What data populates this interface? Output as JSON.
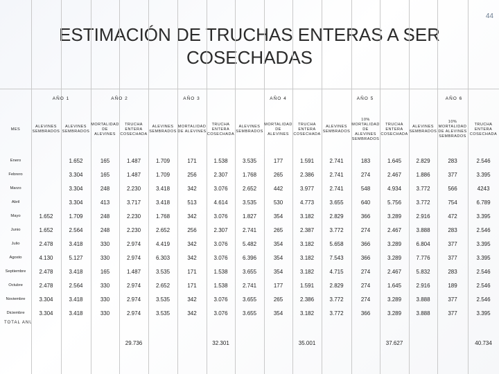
{
  "page_number": "44",
  "title": "ESTIMACIÓN DE TRUCHAS ENTERAS A SER COSECHADAS",
  "years": [
    "AÑO 1",
    "AÑO 2",
    "AÑO 3",
    "AÑO 4",
    "AÑO 5",
    "AÑO 6"
  ],
  "col_headers": {
    "mes": "MES",
    "alevines": "ALEVINES SEMBRADOS",
    "mortalidad": "MORTALIDAD DE ALEVINES",
    "mortalidad_pct": "10% MORTALIDAD DE ALEVINES SEMBRADOS",
    "trucha": "TRUCHA ENTERA COSECHADA"
  },
  "rows": [
    {
      "mes": "Enero",
      "c": [
        "",
        "1.652",
        "165",
        "1.487",
        "1.709",
        "171",
        "1.538",
        "3.535",
        "177",
        "1.591",
        "2.741",
        "183",
        "1.645",
        "2.829",
        "283",
        "2.546"
      ]
    },
    {
      "mes": "Febrero",
      "c": [
        "",
        "3.304",
        "165",
        "1.487",
        "1.709",
        "256",
        "2.307",
        "1.768",
        "265",
        "2.386",
        "2.741",
        "274",
        "2.467",
        "1.886",
        "377",
        "3.395"
      ]
    },
    {
      "mes": "Marzo",
      "c": [
        "",
        "3.304",
        "248",
        "2.230",
        "3.418",
        "342",
        "3.076",
        "2.652",
        "442",
        "3.977",
        "2.741",
        "548",
        "4.934",
        "3.772",
        "566",
        "4243"
      ]
    },
    {
      "mes": "Abril",
      "c": [
        "",
        "3.304",
        "413",
        "3.717",
        "3.418",
        "513",
        "4.614",
        "3.535",
        "530",
        "4.773",
        "3.655",
        "640",
        "5.756",
        "3.772",
        "754",
        "6.789"
      ]
    },
    {
      "mes": "Mayo",
      "c": [
        "1.652",
        "1.709",
        "248",
        "2.230",
        "1.768",
        "342",
        "3.076",
        "1.827",
        "354",
        "3.182",
        "2.829",
        "366",
        "3.289",
        "2.916",
        "472",
        "3.395"
      ]
    },
    {
      "mes": "Junio",
      "c": [
        "1.652",
        "2.564",
        "248",
        "2.230",
        "2.652",
        "256",
        "2.307",
        "2.741",
        "265",
        "2.387",
        "3.772",
        "274",
        "2.467",
        "3.888",
        "283",
        "2.546"
      ]
    },
    {
      "mes": "Julio",
      "c": [
        "2.478",
        "3.418",
        "330",
        "2.974",
        "4.419",
        "342",
        "3.076",
        "5.482",
        "354",
        "3.182",
        "5.658",
        "366",
        "3.289",
        "6.804",
        "377",
        "3.395"
      ]
    },
    {
      "mes": "Agosto",
      "c": [
        "4.130",
        "5.127",
        "330",
        "2.974",
        "6.303",
        "342",
        "3.076",
        "6.396",
        "354",
        "3.182",
        "7.543",
        "366",
        "3.289",
        "7.776",
        "377",
        "3.395"
      ]
    },
    {
      "mes": "Septiembre",
      "c": [
        "2.478",
        "3.418",
        "165",
        "1.487",
        "3.535",
        "171",
        "1.538",
        "3.655",
        "354",
        "3.182",
        "4.715",
        "274",
        "2.467",
        "5.832",
        "283",
        "2.546"
      ]
    },
    {
      "mes": "Octubre",
      "c": [
        "2.478",
        "2.564",
        "330",
        "2.974",
        "2.652",
        "171",
        "1.538",
        "2.741",
        "177",
        "1.591",
        "2.829",
        "274",
        "1.645",
        "2.916",
        "189",
        "2.546"
      ]
    },
    {
      "mes": "Noviembre",
      "c": [
        "3.304",
        "3.418",
        "330",
        "2.974",
        "3.535",
        "342",
        "3.076",
        "3.655",
        "265",
        "2.386",
        "3.772",
        "274",
        "3.289",
        "3.888",
        "377",
        "2.546"
      ]
    },
    {
      "mes": "Diciembre",
      "c": [
        "3.304",
        "3.418",
        "330",
        "2.974",
        "3.535",
        "342",
        "3.076",
        "3.655",
        "354",
        "3.182",
        "3.772",
        "366",
        "3.289",
        "3.888",
        "377",
        "3.395"
      ]
    }
  ],
  "total": {
    "label": "TOTAL ANUAL",
    "y2": "29.736",
    "y3": "32.301",
    "y4": "35.001",
    "y5": "37.627",
    "y6": "40.734"
  }
}
